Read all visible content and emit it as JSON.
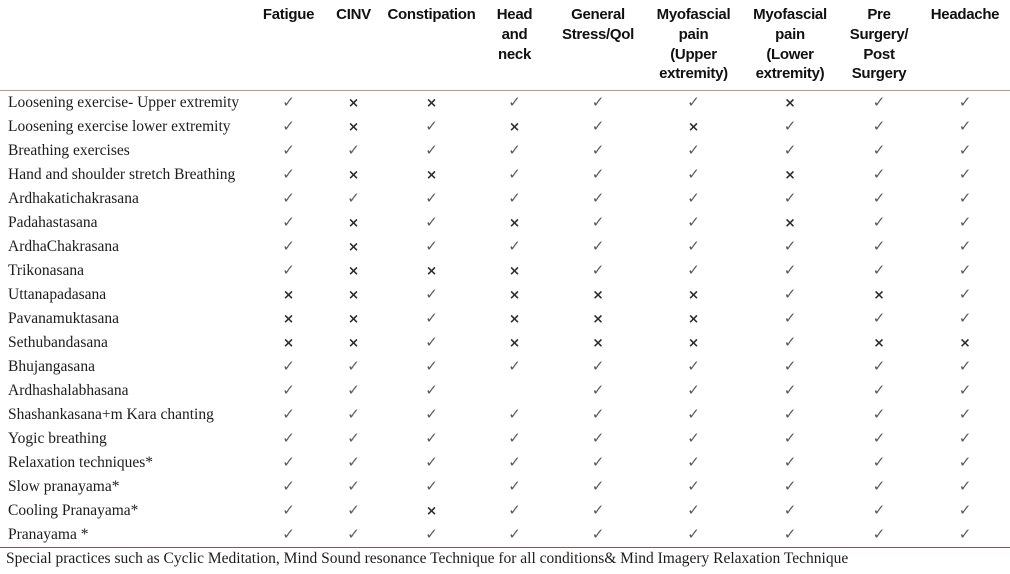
{
  "table": {
    "columns": [
      {
        "label": "Fatigue"
      },
      {
        "label": "CINV"
      },
      {
        "label": "Constipation"
      },
      {
        "label": "Head\nand\nneck"
      },
      {
        "label": "General\nStress/Qol"
      },
      {
        "label": "Myofascial\npain\n(Upper\nextremity)"
      },
      {
        "label": "Myofascial\npain\n(Lower\nextremity)"
      },
      {
        "label": "Pre\nSurgery/\nPost\nSurgery"
      },
      {
        "label": "Headache"
      }
    ],
    "rows": [
      {
        "label": "Loosening exercise- Upper extremity",
        "cells": [
          "✓",
          "×",
          "×",
          "✓",
          "✓",
          "✓",
          "×",
          "✓",
          "✓"
        ]
      },
      {
        "label": "Loosening exercise lower extremity",
        "cells": [
          "✓",
          "×",
          "✓",
          "×",
          "✓",
          "×",
          "✓",
          "✓",
          "✓"
        ]
      },
      {
        "label": "Breathing exercises",
        "cells": [
          "✓",
          "✓",
          "✓",
          "✓",
          "✓",
          "✓",
          "✓",
          "✓",
          "✓"
        ]
      },
      {
        "label": "Hand and shoulder stretch Breathing",
        "cells": [
          "✓",
          "×",
          "×",
          "✓",
          "✓",
          "✓",
          "×",
          "✓",
          "✓"
        ]
      },
      {
        "label": "Ardhakatichakrasana",
        "cells": [
          "✓",
          "✓",
          "✓",
          "✓",
          "✓",
          "✓",
          "✓",
          "✓",
          "✓"
        ]
      },
      {
        "label": "Padahastasana",
        "cells": [
          "✓",
          "×",
          "✓",
          "×",
          "✓",
          "✓",
          "×",
          "✓",
          "✓"
        ]
      },
      {
        "label": "ArdhaChakrasana",
        "cells": [
          "✓",
          "×",
          "✓",
          "✓",
          "✓",
          "✓",
          "✓",
          "✓",
          "✓"
        ]
      },
      {
        "label": "Trikonasana",
        "cells": [
          "✓",
          "×",
          "×",
          "×",
          "✓",
          "✓",
          "✓",
          "✓",
          "✓"
        ]
      },
      {
        "label": "Uttanapadasana",
        "cells": [
          "×",
          "×",
          "✓",
          "×",
          "×",
          "×",
          "✓",
          "×",
          "✓"
        ]
      },
      {
        "label": "Pavanamuktasana",
        "cells": [
          "×",
          "×",
          "✓",
          "×",
          "×",
          "×",
          "✓",
          "✓",
          "✓"
        ]
      },
      {
        "label": "Sethubandasana",
        "cells": [
          "×",
          "×",
          "✓",
          "×",
          "×",
          "×",
          "✓",
          "×",
          "×"
        ]
      },
      {
        "label": "Bhujangasana",
        "cells": [
          "✓",
          "✓",
          "✓",
          "✓",
          "✓",
          "✓",
          "✓",
          "✓",
          "✓"
        ]
      },
      {
        "label": "Ardhashalabhasana",
        "cells": [
          "✓",
          "✓",
          "✓",
          "",
          "✓",
          "✓",
          "✓",
          "✓",
          "✓"
        ]
      },
      {
        "label": "Shashankasana+m Kara chanting",
        "cells": [
          "✓",
          "✓",
          "✓",
          "✓",
          "✓",
          "✓",
          "✓",
          "✓",
          "✓"
        ]
      },
      {
        "label": "Yogic breathing",
        "cells": [
          "✓",
          "✓",
          "✓",
          "✓",
          "✓",
          "✓",
          "✓",
          "✓",
          "✓"
        ]
      },
      {
        "label": "Relaxation techniques*",
        "cells": [
          "✓",
          "✓",
          "✓",
          "✓",
          "✓",
          "✓",
          "✓",
          "✓",
          "✓"
        ]
      },
      {
        "label": "Slow pranayama*",
        "cells": [
          "✓",
          "✓",
          "✓",
          "✓",
          "✓",
          "✓",
          "✓",
          "✓",
          "✓"
        ]
      },
      {
        "label": "Cooling Pranayama*",
        "cells": [
          "✓",
          "✓",
          "×",
          "✓",
          "✓",
          "✓",
          "✓",
          "✓",
          "✓"
        ]
      },
      {
        "label": "Pranayama *",
        "cells": [
          "✓",
          "✓",
          "✓",
          "✓",
          "✓",
          "✓",
          "✓",
          "✓",
          "✓"
        ]
      }
    ],
    "symbols": {
      "check": "✓",
      "cross": "×"
    },
    "footnote": "Special practices such as Cyclic Meditation, Mind Sound resonance Technique for all conditions& Mind Imagery Relaxation Technique",
    "colors": {
      "header_rule": "#c49090",
      "footer_rule": "#8d5454",
      "check": "#5d5d5d",
      "cross": "#2b2b2b"
    }
  }
}
